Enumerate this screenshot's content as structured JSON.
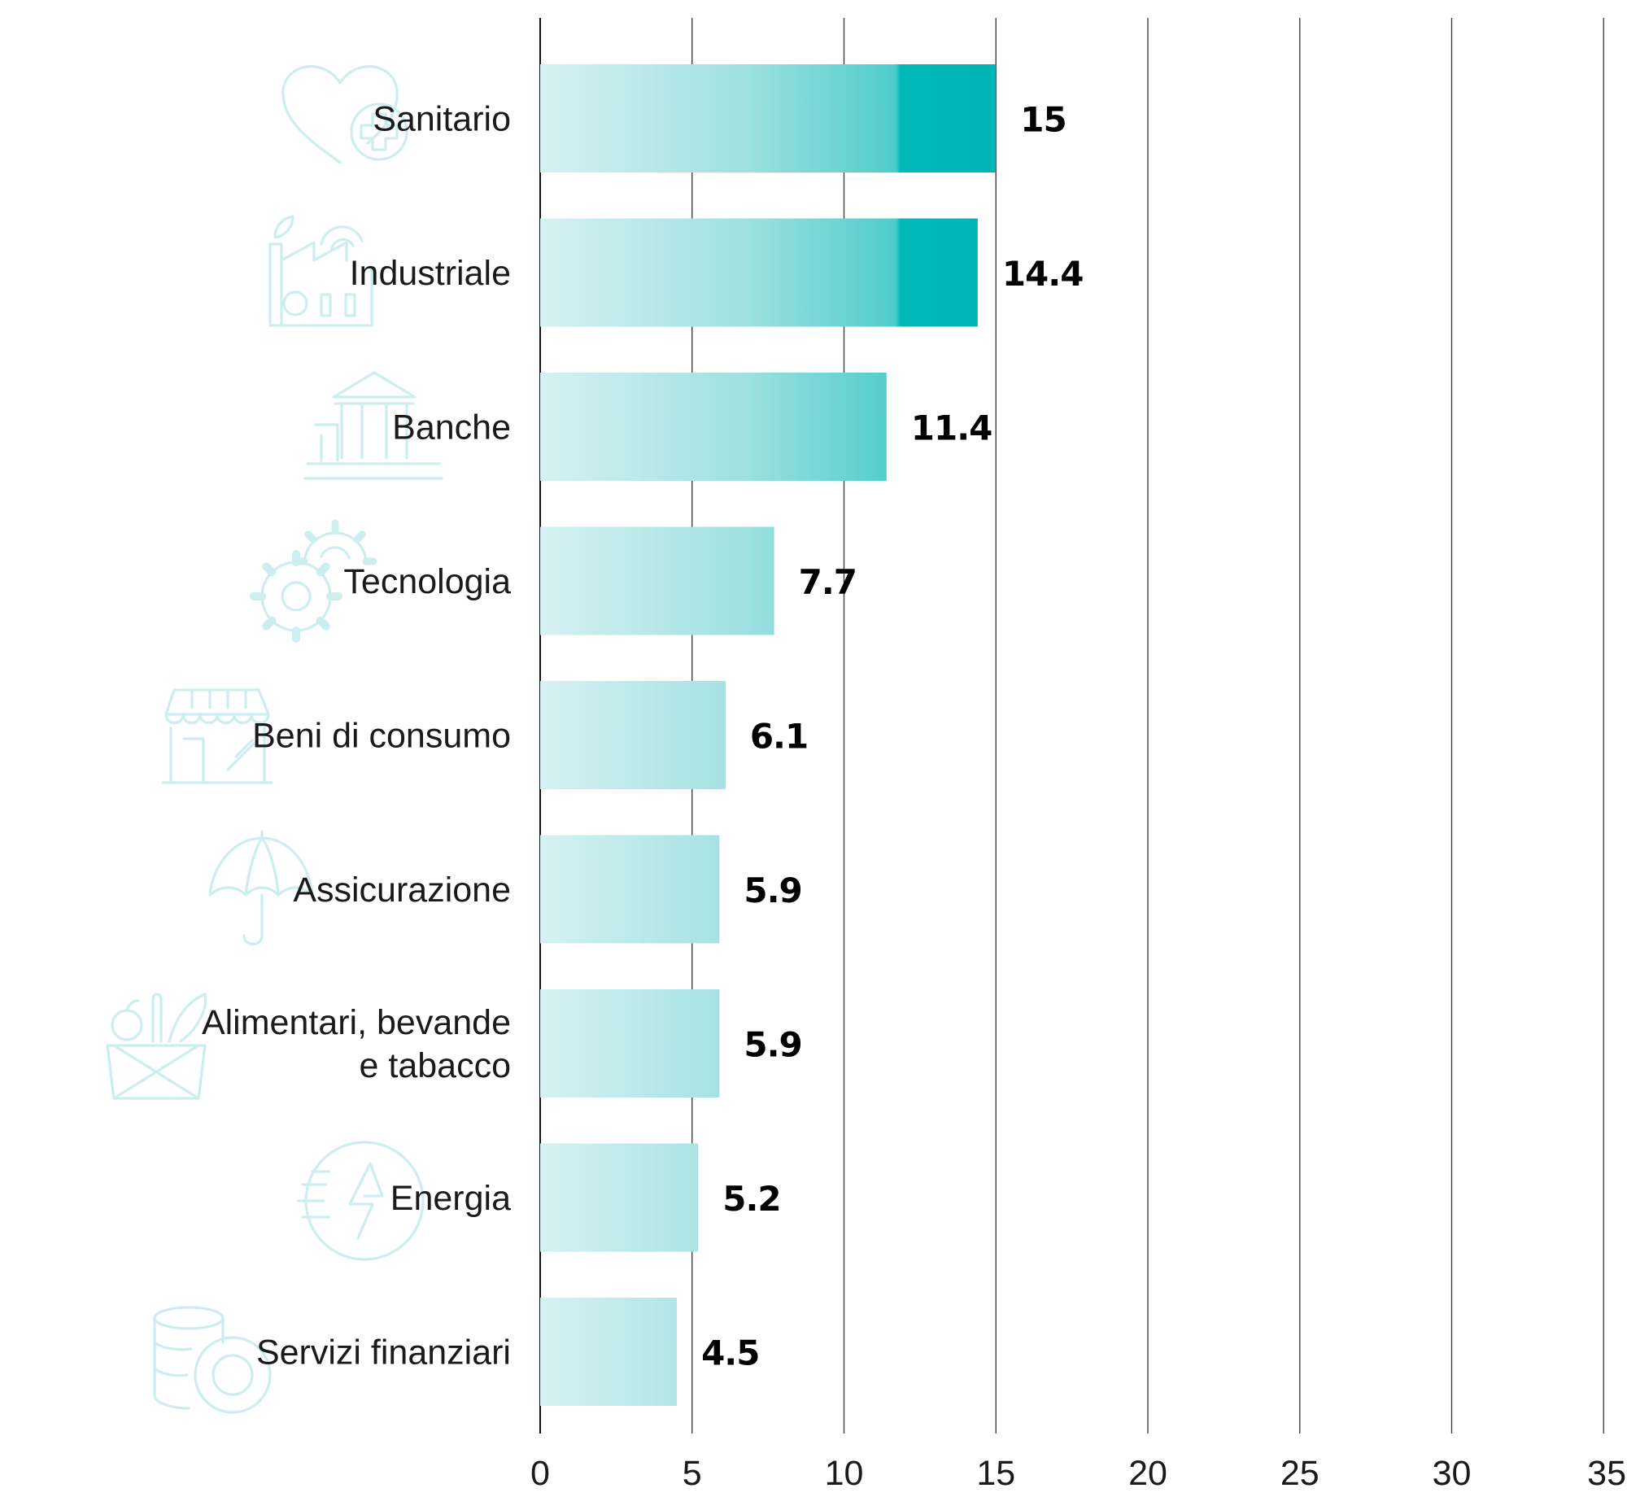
{
  "chart_data": {
    "type": "bar",
    "orientation": "horizontal",
    "categories": [
      [
        "Sanitario"
      ],
      [
        "Industriale"
      ],
      [
        "Banche"
      ],
      [
        "Tecnologia"
      ],
      [
        "Beni di consumo"
      ],
      [
        "Assicurazione"
      ],
      [
        "Alimentari, bevande",
        "e tabacco"
      ],
      [
        "Energia"
      ],
      [
        "Servizi finanziari"
      ]
    ],
    "values": [
      15,
      14.4,
      11.4,
      7.7,
      6.1,
      5.9,
      5.9,
      5.2,
      4.5
    ],
    "value_labels": [
      "15",
      "14.4",
      "11.4",
      "7.7",
      "6.1",
      "5.9",
      "5.9",
      "5.2",
      "4.5"
    ],
    "xlim": [
      0,
      35
    ],
    "xticks": [
      "0",
      "5",
      "10",
      "15",
      "20",
      "25",
      "30",
      "35"
    ],
    "grid": "vertical",
    "title": "",
    "xlabel": "",
    "ylabel": "",
    "category_icons": [
      "heart-plus-icon",
      "factory-icon",
      "bank-icon",
      "gears-icon",
      "shop-icon",
      "umbrella-icon",
      "food-basket-icon",
      "energy-icon",
      "coins-icon"
    ]
  },
  "colors": {
    "bar_light": "#d6f1f2",
    "bar_dark": "#00b9b9",
    "icon": "#cdeeee",
    "gridline": "#333333",
    "axis": "#111111",
    "text": "#1a1a1a"
  }
}
